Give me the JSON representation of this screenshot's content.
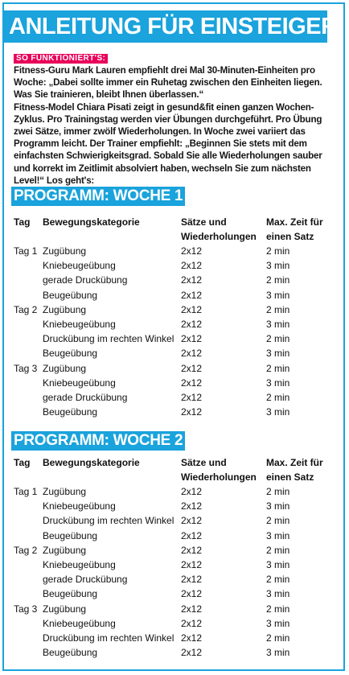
{
  "headline": "ANLEITUNG FÜR EINSTEIGER",
  "tag": "SO FUNKTIONIERT'S:",
  "intro": [
    "Fitness-Guru Mark Lauren empfiehlt drei Mal 30-Minuten-Einheiten pro Woche: „Dabei sollte immer ein Ruhetag zwischen den Einheiten liegen. Was Sie trainieren, bleibt Ihnen überlassen.“",
    "Fitness-Model Chiara Pisati zeigt in gesund&fit einen ganzen Wochen-Zyklus. Pro Trainingstag werden vier Übungen durchgeführt. Pro Übung zwei Sätze, immer zwölf Wiederholungen. In Woche zwei variiert das Programm leicht. Der Trainer empfiehlt: „Beginnen Sie stets mit dem einfachsten Schwierigkeitsgrad. Sobald Sie alle Wiederholungen sauber und korrekt im Zeitlimit absolviert haben, wechseln Sie zum nächsten Level!“ Los geht's:"
  ],
  "headers": {
    "day": "Tag",
    "category": "Bewegungskategorie",
    "sets_l1": "Sätze und",
    "sets_l2": "Wiederholungen",
    "time_l1": "Max. Zeit für",
    "time_l2": "einen Satz"
  },
  "week1": {
    "title": "PROGRAMM: WOCHE 1",
    "rows": [
      {
        "day": "Tag 1",
        "exercise": "Zugübung",
        "sets": "2x12",
        "time": "2 min"
      },
      {
        "day": "",
        "exercise": "Kniebeugeübung",
        "sets": "2x12",
        "time": "3 min"
      },
      {
        "day": "",
        "exercise": "gerade Druckübung",
        "sets": "2x12",
        "time": "2 min"
      },
      {
        "day": "",
        "exercise": "Beugeübung",
        "sets": "2x12",
        "time": "3 min"
      },
      {
        "day": "Tag 2",
        "exercise": "Zugübung",
        "sets": "2x12",
        "time": "2 min"
      },
      {
        "day": "",
        "exercise": "Kniebeugeübung",
        "sets": "2x12",
        "time": "3 min"
      },
      {
        "day": "",
        "exercise": "Druckübung im rechten Winkel",
        "sets": "2x12",
        "time": "2 min"
      },
      {
        "day": "",
        "exercise": "Beugeübung",
        "sets": "2x12",
        "time": "3 min"
      },
      {
        "day": "Tag 3",
        "exercise": "Zugübung",
        "sets": "2x12",
        "time": "2 min"
      },
      {
        "day": "",
        "exercise": "Kniebeugeübung",
        "sets": "2x12",
        "time": "3 min"
      },
      {
        "day": "",
        "exercise": "gerade Druckübung",
        "sets": "2x12",
        "time": "2 min"
      },
      {
        "day": "",
        "exercise": "Beugeübung",
        "sets": "2x12",
        "time": "3 min"
      }
    ]
  },
  "week2": {
    "title": "PROGRAMM: WOCHE 2",
    "rows": [
      {
        "day": "Tag 1",
        "exercise": "Zugübung",
        "sets": "2x12",
        "time": "2 min"
      },
      {
        "day": "",
        "exercise": "Kniebeugeübung",
        "sets": "2x12",
        "time": "3 min"
      },
      {
        "day": "",
        "exercise": "Druckübung im rechten Winkel",
        "sets": "2x12",
        "time": "2 min"
      },
      {
        "day": "",
        "exercise": "Beugeübung",
        "sets": "2x12",
        "time": "3 min"
      },
      {
        "day": "Tag 2",
        "exercise": "Zugübung",
        "sets": "2x12",
        "time": "2 min"
      },
      {
        "day": "",
        "exercise": "Kniebeugeübung",
        "sets": "2x12",
        "time": "3 min"
      },
      {
        "day": "",
        "exercise": "gerade Druckübung",
        "sets": "2x12",
        "time": "2 min"
      },
      {
        "day": "",
        "exercise": "Beugeübung",
        "sets": "2x12",
        "time": "3 min"
      },
      {
        "day": "Tag 3",
        "exercise": "Zugübung",
        "sets": "2x12",
        "time": "2 min"
      },
      {
        "day": "",
        "exercise": "Kniebeugeübung",
        "sets": "2x12",
        "time": "3 min"
      },
      {
        "day": "",
        "exercise": "Druckübung im rechten Winkel",
        "sets": "2x12",
        "time": "2 min"
      },
      {
        "day": "",
        "exercise": "Beugeübung",
        "sets": "2x12",
        "time": "3 min"
      }
    ]
  },
  "colors": {
    "accent": "#1aa3dc",
    "tag": "#e8005a"
  }
}
